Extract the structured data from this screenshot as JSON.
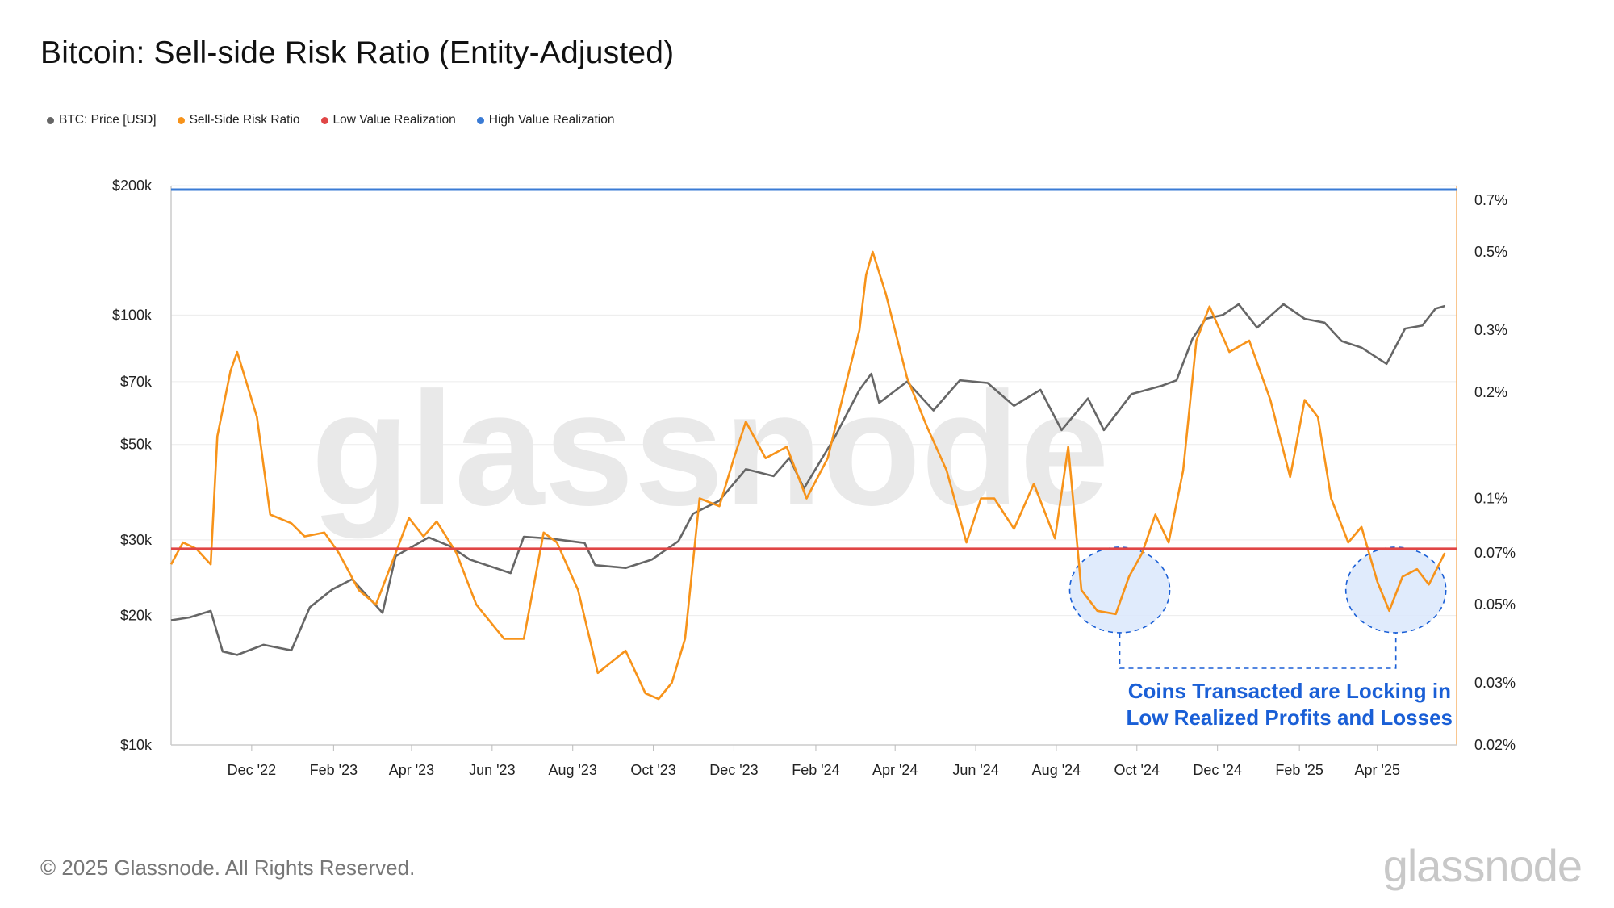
{
  "title": "Bitcoin: Sell-side Risk Ratio (Entity-Adjusted)",
  "legend": [
    {
      "label": "BTC: Price [USD]",
      "color": "#666666"
    },
    {
      "label": "Sell-Side Risk Ratio",
      "color": "#f7931a"
    },
    {
      "label": "Low Value Realization",
      "color": "#e04646"
    },
    {
      "label": "High Value Realization",
      "color": "#3a7bd5"
    }
  ],
  "watermark": "glassnode",
  "footer": "© 2025 Glassnode. All Rights Reserved.",
  "logo": "glassnode",
  "annotation": [
    "Coins Transacted are Locking in",
    "Low Realized Profits and Losses"
  ],
  "chart_data": {
    "type": "line",
    "x_axis": {
      "type": "date",
      "range": [
        "2022-10-01",
        "2025-05-31"
      ],
      "ticks": [
        {
          "date": "2022-12-01",
          "label": "Dec '22"
        },
        {
          "date": "2023-02-01",
          "label": "Feb '23"
        },
        {
          "date": "2023-04-01",
          "label": "Apr '23"
        },
        {
          "date": "2023-06-01",
          "label": "Jun '23"
        },
        {
          "date": "2023-08-01",
          "label": "Aug '23"
        },
        {
          "date": "2023-10-01",
          "label": "Oct '23"
        },
        {
          "date": "2023-12-01",
          "label": "Dec '23"
        },
        {
          "date": "2024-02-01",
          "label": "Feb '24"
        },
        {
          "date": "2024-04-01",
          "label": "Apr '24"
        },
        {
          "date": "2024-06-01",
          "label": "Jun '24"
        },
        {
          "date": "2024-08-01",
          "label": "Aug '24"
        },
        {
          "date": "2024-10-01",
          "label": "Oct '24"
        },
        {
          "date": "2024-12-01",
          "label": "Dec '24"
        },
        {
          "date": "2025-02-01",
          "label": "Feb '25"
        },
        {
          "date": "2025-04-01",
          "label": "Apr '25"
        }
      ]
    },
    "y_left": {
      "scale": "log",
      "range": [
        10000,
        200000
      ],
      "ticks": [
        {
          "value": 200000,
          "label": "$200k"
        },
        {
          "value": 100000,
          "label": "$100k"
        },
        {
          "value": 70000,
          "label": "$70k"
        },
        {
          "value": 50000,
          "label": "$50k"
        },
        {
          "value": 30000,
          "label": "$30k"
        },
        {
          "value": 20000,
          "label": "$20k"
        },
        {
          "value": 10000,
          "label": "$10k"
        }
      ]
    },
    "y_right": {
      "scale": "log",
      "range": [
        0.02,
        0.77
      ],
      "ticks": [
        {
          "value": 0.7,
          "label": "0.7%"
        },
        {
          "value": 0.5,
          "label": "0.5%"
        },
        {
          "value": 0.3,
          "label": "0.3%"
        },
        {
          "value": 0.2,
          "label": "0.2%"
        },
        {
          "value": 0.1,
          "label": "0.1%"
        },
        {
          "value": 0.07,
          "label": "0.07%"
        },
        {
          "value": 0.05,
          "label": "0.05%"
        },
        {
          "value": 0.03,
          "label": "0.03%"
        },
        {
          "value": 0.02,
          "label": "0.02%"
        }
      ]
    },
    "grid": true,
    "series": [
      {
        "name": "BTC: Price [USD]",
        "axis": "left",
        "color": "#666666",
        "points": [
          [
            "2022-10-01",
            19500
          ],
          [
            "2022-10-15",
            19800
          ],
          [
            "2022-10-31",
            20500
          ],
          [
            "2022-11-09",
            16500
          ],
          [
            "2022-11-20",
            16200
          ],
          [
            "2022-12-10",
            17100
          ],
          [
            "2022-12-31",
            16600
          ],
          [
            "2023-01-14",
            20900
          ],
          [
            "2023-01-31",
            23000
          ],
          [
            "2023-02-15",
            24300
          ],
          [
            "2023-03-10",
            20300
          ],
          [
            "2023-03-20",
            27500
          ],
          [
            "2023-04-14",
            30400
          ],
          [
            "2023-04-30",
            29000
          ],
          [
            "2023-05-15",
            27000
          ],
          [
            "2023-06-15",
            25100
          ],
          [
            "2023-06-25",
            30500
          ],
          [
            "2023-07-15",
            30200
          ],
          [
            "2023-08-10",
            29500
          ],
          [
            "2023-08-18",
            26200
          ],
          [
            "2023-09-10",
            25800
          ],
          [
            "2023-09-30",
            27000
          ],
          [
            "2023-10-20",
            29800
          ],
          [
            "2023-10-31",
            34500
          ],
          [
            "2023-11-20",
            37000
          ],
          [
            "2023-12-10",
            43800
          ],
          [
            "2023-12-31",
            42200
          ],
          [
            "2024-01-12",
            46500
          ],
          [
            "2024-01-23",
            39500
          ],
          [
            "2024-02-15",
            51800
          ],
          [
            "2024-03-05",
            67000
          ],
          [
            "2024-03-14",
            73000
          ],
          [
            "2024-03-20",
            62500
          ],
          [
            "2024-04-10",
            70000
          ],
          [
            "2024-04-30",
            60000
          ],
          [
            "2024-05-20",
            70500
          ],
          [
            "2024-06-10",
            69500
          ],
          [
            "2024-06-30",
            61500
          ],
          [
            "2024-07-20",
            67000
          ],
          [
            "2024-08-05",
            54000
          ],
          [
            "2024-08-25",
            64000
          ],
          [
            "2024-09-06",
            54000
          ],
          [
            "2024-09-27",
            65500
          ],
          [
            "2024-10-20",
            68500
          ],
          [
            "2024-10-31",
            70500
          ],
          [
            "2024-11-12",
            88000
          ],
          [
            "2024-11-22",
            98000
          ],
          [
            "2024-12-05",
            100000
          ],
          [
            "2024-12-17",
            106000
          ],
          [
            "2024-12-31",
            93500
          ],
          [
            "2025-01-20",
            106000
          ],
          [
            "2025-02-05",
            98000
          ],
          [
            "2025-02-20",
            96000
          ],
          [
            "2025-03-05",
            87000
          ],
          [
            "2025-03-20",
            84000
          ],
          [
            "2025-04-08",
            77000
          ],
          [
            "2025-04-22",
            93000
          ],
          [
            "2025-05-05",
            94500
          ],
          [
            "2025-05-15",
            103500
          ],
          [
            "2025-05-22",
            105000
          ]
        ]
      },
      {
        "name": "Sell-Side Risk Ratio",
        "axis": "right",
        "color": "#f7931a",
        "points": [
          [
            "2022-10-01",
            0.065
          ],
          [
            "2022-10-10",
            0.075
          ],
          [
            "2022-10-20",
            0.072
          ],
          [
            "2022-10-31",
            0.065
          ],
          [
            "2022-11-05",
            0.15
          ],
          [
            "2022-11-15",
            0.23
          ],
          [
            "2022-11-20",
            0.26
          ],
          [
            "2022-12-05",
            0.17
          ],
          [
            "2022-12-15",
            0.09
          ],
          [
            "2022-12-31",
            0.085
          ],
          [
            "2023-01-10",
            0.078
          ],
          [
            "2023-01-25",
            0.08
          ],
          [
            "2023-02-05",
            0.07
          ],
          [
            "2023-02-20",
            0.055
          ],
          [
            "2023-03-05",
            0.05
          ],
          [
            "2023-03-20",
            0.07
          ],
          [
            "2023-03-30",
            0.088
          ],
          [
            "2023-04-10",
            0.078
          ],
          [
            "2023-04-20",
            0.086
          ],
          [
            "2023-05-05",
            0.07
          ],
          [
            "2023-05-20",
            0.05
          ],
          [
            "2023-06-10",
            0.04
          ],
          [
            "2023-06-25",
            0.04
          ],
          [
            "2023-07-10",
            0.08
          ],
          [
            "2023-07-20",
            0.075
          ],
          [
            "2023-08-05",
            0.055
          ],
          [
            "2023-08-20",
            0.032
          ],
          [
            "2023-09-10",
            0.037
          ],
          [
            "2023-09-25",
            0.028
          ],
          [
            "2023-10-05",
            0.027
          ],
          [
            "2023-10-15",
            0.03
          ],
          [
            "2023-10-25",
            0.04
          ],
          [
            "2023-11-05",
            0.1
          ],
          [
            "2023-11-20",
            0.095
          ],
          [
            "2023-12-01",
            0.13
          ],
          [
            "2023-12-10",
            0.165
          ],
          [
            "2023-12-25",
            0.13
          ],
          [
            "2024-01-10",
            0.14
          ],
          [
            "2024-01-25",
            0.1
          ],
          [
            "2024-02-10",
            0.13
          ],
          [
            "2024-02-25",
            0.22
          ],
          [
            "2024-03-05",
            0.3
          ],
          [
            "2024-03-10",
            0.43
          ],
          [
            "2024-03-15",
            0.5
          ],
          [
            "2024-03-25",
            0.38
          ],
          [
            "2024-04-10",
            0.22
          ],
          [
            "2024-04-25",
            0.16
          ],
          [
            "2024-05-10",
            0.12
          ],
          [
            "2024-05-25",
            0.075
          ],
          [
            "2024-06-05",
            0.1
          ],
          [
            "2024-06-15",
            0.1
          ],
          [
            "2024-06-30",
            0.082
          ],
          [
            "2024-07-15",
            0.11
          ],
          [
            "2024-07-31",
            0.077
          ],
          [
            "2024-08-10",
            0.14
          ],
          [
            "2024-08-20",
            0.055
          ],
          [
            "2024-09-01",
            0.048
          ],
          [
            "2024-09-15",
            0.047
          ],
          [
            "2024-09-25",
            0.06
          ],
          [
            "2024-10-05",
            0.07
          ],
          [
            "2024-10-15",
            0.09
          ],
          [
            "2024-10-25",
            0.075
          ],
          [
            "2024-11-05",
            0.12
          ],
          [
            "2024-11-15",
            0.28
          ],
          [
            "2024-11-25",
            0.35
          ],
          [
            "2024-12-10",
            0.26
          ],
          [
            "2024-12-25",
            0.28
          ],
          [
            "2025-01-10",
            0.19
          ],
          [
            "2025-01-25",
            0.115
          ],
          [
            "2025-02-05",
            0.19
          ],
          [
            "2025-02-15",
            0.17
          ],
          [
            "2025-02-25",
            0.1
          ],
          [
            "2025-03-10",
            0.075
          ],
          [
            "2025-03-20",
            0.083
          ],
          [
            "2025-04-01",
            0.058
          ],
          [
            "2025-04-10",
            0.048
          ],
          [
            "2025-04-20",
            0.06
          ],
          [
            "2025-05-01",
            0.063
          ],
          [
            "2025-05-10",
            0.057
          ],
          [
            "2025-05-22",
            0.07
          ]
        ]
      },
      {
        "name": "Low Value Realization",
        "axis": "right",
        "color": "#e04646",
        "value": 0.072
      },
      {
        "name": "High Value Realization",
        "axis": "right",
        "color": "#3a7bd5",
        "value": 0.75
      }
    ],
    "highlight_regions": [
      {
        "center": "2024-09-18",
        "value": 0.055
      },
      {
        "center": "2025-04-15",
        "value": 0.055
      }
    ]
  }
}
